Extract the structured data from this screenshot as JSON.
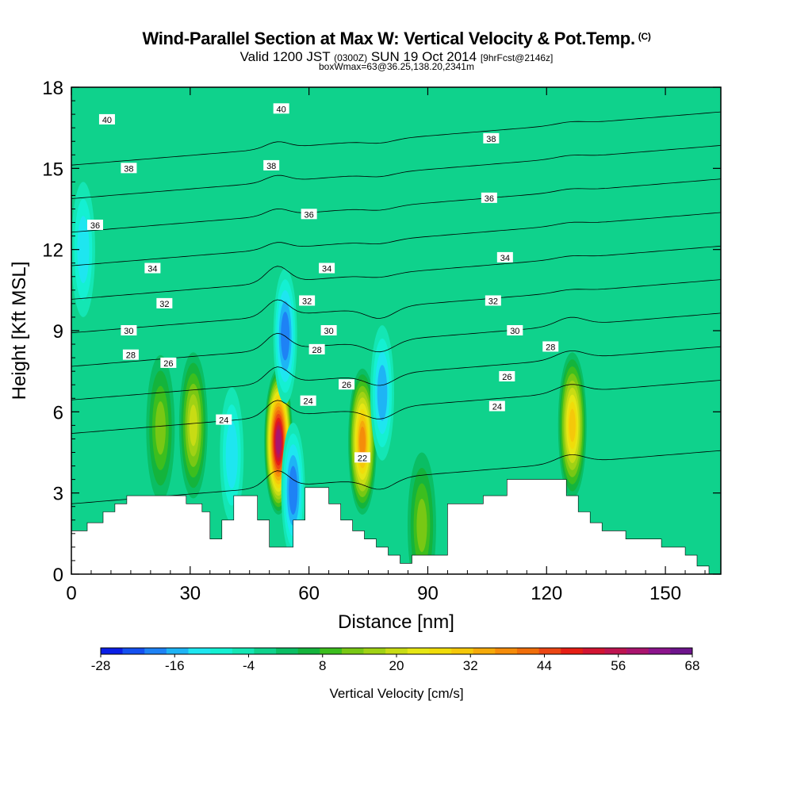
{
  "header": {
    "title": "Wind-Parallel Section at Max W: Vertical Velocity & Pot.Temp.",
    "title_suffix": "(C)",
    "subtitle_main": "Valid 1200 JST",
    "subtitle_utc": "(0300Z)",
    "subtitle_date": "SUN 19 Oct 2014",
    "subtitle_fcst": "[9hrFcst@2146z]",
    "box_info": "boxWmax=63@36.25,138.20,2341m"
  },
  "chart_data": {
    "type": "heatmap",
    "xlabel": "Distance [nm]",
    "ylabel": "Height [Kft MSL]",
    "xlim": [
      0,
      164
    ],
    "ylim": [
      0,
      18
    ],
    "xticks": [
      0,
      30,
      60,
      90,
      120,
      150
    ],
    "yticks": [
      0,
      3,
      6,
      9,
      12,
      15,
      18
    ],
    "colorbar": {
      "label": "Vertical Velocity [cm/s]",
      "min": -28,
      "max": 68,
      "step": 4,
      "tick_labels": [
        -28,
        -16,
        -4,
        8,
        20,
        32,
        44,
        56,
        68
      ],
      "colors": [
        "#0a1ee6",
        "#1450f0",
        "#1e82f5",
        "#1eb4f5",
        "#1ee6f0",
        "#14f0d2",
        "#14e6b4",
        "#0fd28c",
        "#0abe64",
        "#14b43c",
        "#3cbe1e",
        "#78c814",
        "#a0d214",
        "#c8dc14",
        "#e6e614",
        "#f0dc0a",
        "#f5c80a",
        "#f5aa0a",
        "#f58c0a",
        "#f06e0a",
        "#eb4614",
        "#e61e14",
        "#d21432",
        "#be1450",
        "#aa146e",
        "#8c148c",
        "#6e148c"
      ]
    },
    "terrain": [
      [
        0,
        1.6
      ],
      [
        4,
        1.6
      ],
      [
        4,
        1.9
      ],
      [
        8,
        1.9
      ],
      [
        8,
        2.3
      ],
      [
        11,
        2.3
      ],
      [
        11,
        2.6
      ],
      [
        14,
        2.6
      ],
      [
        14,
        2.9
      ],
      [
        26,
        2.9
      ],
      [
        26,
        2.9
      ],
      [
        29,
        2.9
      ],
      [
        29,
        2.6
      ],
      [
        33,
        2.6
      ],
      [
        33,
        2.3
      ],
      [
        35,
        2.3
      ],
      [
        35,
        1.3
      ],
      [
        38,
        1.3
      ],
      [
        38,
        2.0
      ],
      [
        41,
        2.0
      ],
      [
        41,
        2.9
      ],
      [
        47,
        2.9
      ],
      [
        47,
        2.0
      ],
      [
        50,
        2.0
      ],
      [
        50,
        1.0
      ],
      [
        56,
        1.0
      ],
      [
        56,
        2.0
      ],
      [
        59,
        2.0
      ],
      [
        59,
        3.2
      ],
      [
        65,
        3.2
      ],
      [
        65,
        2.6
      ],
      [
        68,
        2.6
      ],
      [
        68,
        2.0
      ],
      [
        71,
        2.0
      ],
      [
        71,
        1.6
      ],
      [
        74,
        1.6
      ],
      [
        74,
        1.3
      ],
      [
        77,
        1.3
      ],
      [
        77,
        1.0
      ],
      [
        80,
        1.0
      ],
      [
        80,
        0.7
      ],
      [
        83,
        0.7
      ],
      [
        83,
        0.4
      ],
      [
        86,
        0.4
      ],
      [
        86,
        0.7
      ],
      [
        95,
        0.7
      ],
      [
        95,
        2.6
      ],
      [
        104,
        2.6
      ],
      [
        104,
        2.9
      ],
      [
        110,
        2.9
      ],
      [
        110,
        3.5
      ],
      [
        125,
        3.5
      ],
      [
        125,
        2.9
      ],
      [
        128,
        2.9
      ],
      [
        128,
        2.3
      ],
      [
        131,
        2.3
      ],
      [
        131,
        1.9
      ],
      [
        134,
        1.9
      ],
      [
        134,
        1.6
      ],
      [
        140,
        1.6
      ],
      [
        140,
        1.3
      ],
      [
        149,
        1.3
      ],
      [
        149,
        1.0
      ],
      [
        155,
        1.0
      ],
      [
        155,
        0.7
      ],
      [
        158,
        0.7
      ],
      [
        158,
        0.3
      ],
      [
        161,
        0.3
      ],
      [
        161,
        0
      ]
    ],
    "updrafts": [
      {
        "x": 52.3,
        "y": 4.9,
        "max": 68
      },
      {
        "x": 73.5,
        "y": 4.9,
        "max": 44
      },
      {
        "x": 126.5,
        "y": 5.5,
        "max": 36
      },
      {
        "x": 30.8,
        "y": 5.5,
        "max": 22
      },
      {
        "x": 22.5,
        "y": 5.4,
        "max": 14
      },
      {
        "x": 88.5,
        "y": 1.8,
        "max": 14
      }
    ],
    "downdrafts": [
      {
        "x": 56.0,
        "y": 3.1,
        "min": -20
      },
      {
        "x": 40.5,
        "y": 4.4,
        "min": -10
      },
      {
        "x": 54.0,
        "y": 8.8,
        "min": -18
      },
      {
        "x": 78.5,
        "y": 6.7,
        "min": -14
      },
      {
        "x": 3.0,
        "y": 12.0,
        "min": -10
      }
    ],
    "isentropes": [
      {
        "level": 22,
        "labels": [
          {
            "x": 73.5,
            "y": 4.3
          }
        ]
      },
      {
        "level": 24,
        "labels": [
          {
            "x": 38.5,
            "y": 5.7
          },
          {
            "x": 59.8,
            "y": 6.4
          },
          {
            "x": 107.5,
            "y": 6.2
          }
        ]
      },
      {
        "level": 26,
        "labels": [
          {
            "x": 24.5,
            "y": 7.8
          },
          {
            "x": 69.5,
            "y": 7.0
          },
          {
            "x": 110.0,
            "y": 7.3
          }
        ]
      },
      {
        "level": 28,
        "labels": [
          {
            "x": 15.0,
            "y": 8.1
          },
          {
            "x": 62.0,
            "y": 8.3
          },
          {
            "x": 121.0,
            "y": 8.4
          }
        ]
      },
      {
        "level": 30,
        "labels": [
          {
            "x": 14.5,
            "y": 9.0
          },
          {
            "x": 65.0,
            "y": 9.0
          },
          {
            "x": 112.0,
            "y": 9.0
          }
        ]
      },
      {
        "level": 32,
        "labels": [
          {
            "x": 23.5,
            "y": 10.0
          },
          {
            "x": 59.5,
            "y": 10.1
          },
          {
            "x": 106.5,
            "y": 10.1
          }
        ]
      },
      {
        "level": 34,
        "labels": [
          {
            "x": 20.5,
            "y": 11.3
          },
          {
            "x": 64.5,
            "y": 11.3
          },
          {
            "x": 109.5,
            "y": 11.7
          }
        ]
      },
      {
        "level": 36,
        "labels": [
          {
            "x": 6.0,
            "y": 12.9
          },
          {
            "x": 60.0,
            "y": 13.3
          },
          {
            "x": 105.5,
            "y": 13.9
          }
        ]
      },
      {
        "level": 38,
        "labels": [
          {
            "x": 14.5,
            "y": 15.0
          },
          {
            "x": 50.5,
            "y": 15.1
          },
          {
            "x": 106.0,
            "y": 16.1
          }
        ]
      },
      {
        "level": 40,
        "labels": [
          {
            "x": 9.0,
            "y": 16.8
          },
          {
            "x": 53.0,
            "y": 17.2
          }
        ]
      }
    ]
  }
}
